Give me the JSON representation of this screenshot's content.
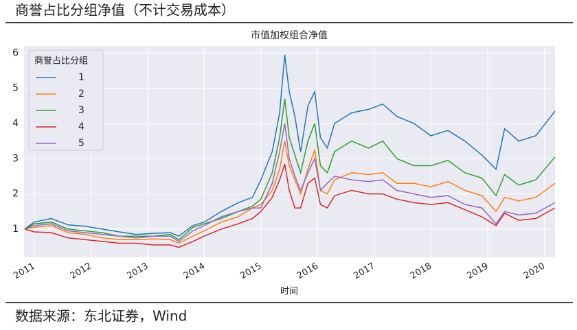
{
  "page_title": "商誉占比分组净值（不计交易成本）",
  "source": "数据来源：东北证券，Wind",
  "chart_data": {
    "type": "line",
    "title": "市值加权组合净值",
    "x_label": "时间",
    "x": [
      2010.83,
      2011.0,
      2011.3,
      2011.6,
      2011.9,
      2012.2,
      2012.5,
      2012.8,
      2013.1,
      2013.4,
      2013.55,
      2013.8,
      2014.0,
      2014.3,
      2014.6,
      2014.85,
      2015.0,
      2015.2,
      2015.33,
      2015.42,
      2015.5,
      2015.6,
      2015.7,
      2015.83,
      2015.95,
      2016.05,
      2016.17,
      2016.3,
      2016.6,
      2016.9,
      2017.15,
      2017.4,
      2017.7,
      2018.0,
      2018.3,
      2018.6,
      2018.9,
      2019.15,
      2019.3,
      2019.55,
      2019.85,
      2020.19
    ],
    "series": [
      {
        "name": "1",
        "color": "#1f77b4",
        "values": [
          1.0,
          1.2,
          1.3,
          1.12,
          1.08,
          1.0,
          0.92,
          0.85,
          0.88,
          0.9,
          0.8,
          1.1,
          1.2,
          1.5,
          1.75,
          1.9,
          2.4,
          3.2,
          4.3,
          5.95,
          4.9,
          4.2,
          3.2,
          4.5,
          4.9,
          3.6,
          3.3,
          4.0,
          4.3,
          4.4,
          4.55,
          4.2,
          4.0,
          3.65,
          3.8,
          3.5,
          3.1,
          2.7,
          3.85,
          3.5,
          3.65,
          4.35
        ]
      },
      {
        "name": "2",
        "color": "#ff7f0e",
        "values": [
          1.0,
          1.05,
          1.1,
          0.9,
          0.85,
          0.75,
          0.7,
          0.7,
          0.72,
          0.7,
          0.6,
          0.8,
          0.95,
          1.2,
          1.35,
          1.6,
          1.7,
          2.1,
          2.7,
          3.5,
          2.8,
          2.4,
          2.0,
          2.7,
          3.25,
          2.1,
          2.0,
          2.4,
          2.6,
          2.55,
          2.6,
          2.3,
          2.3,
          2.2,
          2.35,
          2.1,
          1.95,
          1.5,
          1.9,
          1.8,
          1.9,
          2.3
        ]
      },
      {
        "name": "3",
        "color": "#2ca02c",
        "values": [
          1.0,
          1.15,
          1.2,
          1.0,
          0.95,
          0.9,
          0.8,
          0.8,
          0.8,
          0.85,
          0.7,
          1.05,
          1.15,
          1.3,
          1.5,
          1.65,
          1.85,
          2.6,
          3.6,
          4.7,
          3.6,
          3.1,
          2.6,
          3.5,
          4.0,
          2.8,
          2.6,
          3.2,
          3.5,
          3.3,
          3.5,
          3.0,
          2.8,
          2.8,
          2.95,
          2.6,
          2.45,
          1.95,
          2.55,
          2.25,
          2.4,
          3.05
        ]
      },
      {
        "name": "4",
        "color": "#d62728",
        "values": [
          1.0,
          0.92,
          0.9,
          0.75,
          0.7,
          0.65,
          0.6,
          0.6,
          0.55,
          0.55,
          0.48,
          0.65,
          0.8,
          1.0,
          1.15,
          1.3,
          1.5,
          1.9,
          2.4,
          2.85,
          2.1,
          1.6,
          1.6,
          2.3,
          2.45,
          1.7,
          1.6,
          1.95,
          2.1,
          2.0,
          2.0,
          1.85,
          1.75,
          1.7,
          1.75,
          1.55,
          1.35,
          1.1,
          1.45,
          1.25,
          1.3,
          1.6
        ]
      },
      {
        "name": "5",
        "color": "#9467bd",
        "values": [
          1.0,
          1.1,
          1.15,
          0.95,
          0.9,
          0.85,
          0.8,
          0.75,
          0.8,
          0.8,
          0.65,
          0.95,
          1.1,
          1.35,
          1.5,
          1.6,
          1.6,
          2.3,
          3.2,
          4.0,
          3.0,
          2.5,
          2.1,
          2.6,
          3.0,
          2.1,
          2.3,
          2.5,
          2.4,
          2.35,
          2.4,
          2.1,
          2.0,
          1.9,
          1.95,
          1.7,
          1.6,
          1.15,
          1.5,
          1.4,
          1.45,
          1.75
        ]
      }
    ],
    "xlim": [
      2010.82,
      2020.19
    ],
    "xticks": [
      2011,
      2012,
      2013,
      2014,
      2015,
      2016,
      2017,
      2018,
      2019,
      2020
    ],
    "ylim": [
      0.2,
      6.2
    ],
    "yticks": [
      1,
      2,
      3,
      4,
      5,
      6
    ],
    "grid": true,
    "legend": "upper left",
    "legend_title": "商誉占比分组"
  }
}
